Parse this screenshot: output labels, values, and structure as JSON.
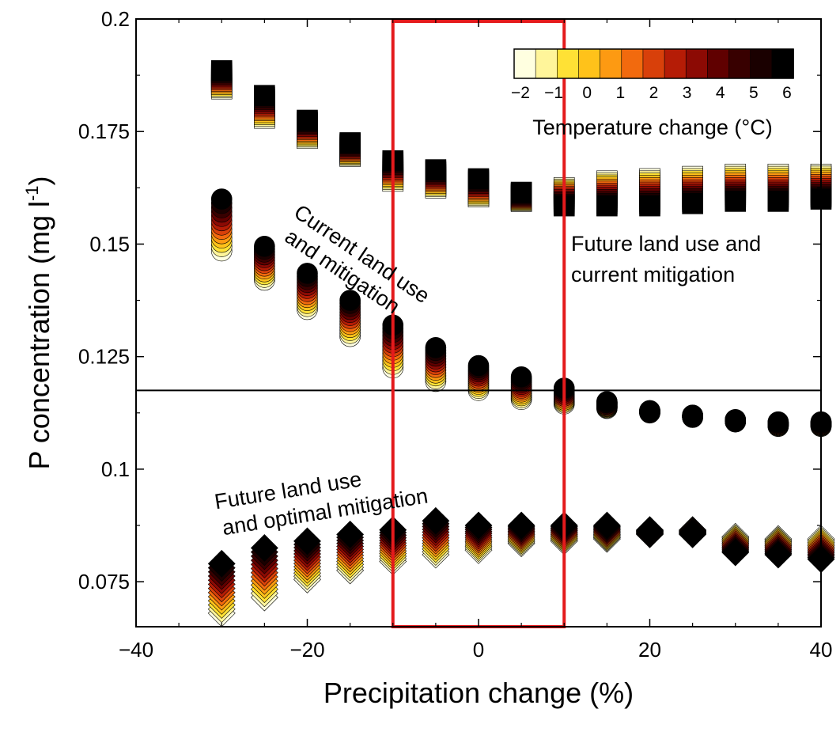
{
  "chart_data": {
    "type": "scatter",
    "xlabel": "Precipitation change (%)",
    "ylabel": "P concentration (mg l",
    "ylabel_sup": "-1",
    "ylabel_tail": ")",
    "xlim": [
      -40,
      40
    ],
    "ylim": [
      0.065,
      0.2
    ],
    "xticks": [
      -40,
      -20,
      0,
      20,
      40
    ],
    "xtick_labels": [
      "−40",
      "−20",
      "0",
      "20",
      "40"
    ],
    "yticks": [
      0.075,
      0.1,
      0.125,
      0.15,
      0.175,
      0.2
    ],
    "ytick_labels": [
      "0.075",
      "0.1",
      "0.125",
      "0.15",
      "0.175",
      "0.2"
    ],
    "x": [
      -30,
      -25,
      -20,
      -15,
      -10,
      -5,
      0,
      5,
      10,
      15,
      20,
      25,
      30,
      35,
      40
    ],
    "reference_line": 0.1175,
    "highlight_box": {
      "x": [
        -10,
        10
      ],
      "color": "#e41a1c"
    },
    "colorbar": {
      "title": "Temperature change (°C)",
      "range": [
        -2,
        6
      ],
      "ticks": [
        "−2",
        "−1",
        "0",
        "1",
        "2",
        "3",
        "4",
        "5",
        "6"
      ],
      "colors": [
        "#ffffe0",
        "#fff59a",
        "#ffe135",
        "#ffc21a",
        "#fd9a12",
        "#f26a0e",
        "#d8400a",
        "#b51c06",
        "#8c0a04",
        "#600000",
        "#380000",
        "#1a0000",
        "#000000"
      ]
    },
    "annotations": [
      {
        "lines": [
          "Current land use",
          "and mitigation"
        ]
      },
      {
        "lines": [
          "Future land use and",
          "current mitigation"
        ]
      },
      {
        "lines": [
          "Future land use",
          "and optimal mitigation"
        ]
      }
    ],
    "series": [
      {
        "marker": "square",
        "min": [
          0.1845,
          0.178,
          0.1735,
          0.1695,
          0.164,
          0.1625,
          0.1605,
          0.1595,
          0.1585,
          0.1585,
          0.1585,
          0.159,
          0.1595,
          0.1595,
          0.16
        ],
        "max": [
          0.1885,
          0.183,
          0.1775,
          0.1725,
          0.1685,
          0.1665,
          0.1645,
          0.1615,
          0.1625,
          0.164,
          0.1645,
          0.165,
          0.1655,
          0.1655,
          0.1655
        ],
        "cool_at_max": [
          false,
          false,
          false,
          false,
          false,
          false,
          false,
          false,
          true,
          true,
          true,
          true,
          true,
          true,
          true
        ]
      },
      {
        "marker": "circle",
        "min": [
          0.1485,
          0.142,
          0.1355,
          0.1295,
          0.1225,
          0.1195,
          0.1175,
          0.1155,
          0.1145,
          0.1135,
          0.1125,
          0.1115,
          0.1105,
          0.1095,
          0.1095
        ],
        "max": [
          0.16,
          0.1495,
          0.1435,
          0.1375,
          0.132,
          0.127,
          0.123,
          0.1205,
          0.118,
          0.115,
          0.113,
          0.112,
          0.111,
          0.1105,
          0.1105
        ],
        "cool_at_max": [
          false,
          false,
          false,
          false,
          false,
          false,
          false,
          false,
          false,
          false,
          false,
          false,
          false,
          false,
          false
        ]
      },
      {
        "marker": "diamond",
        "min": [
          0.068,
          0.0715,
          0.0755,
          0.0775,
          0.0795,
          0.081,
          0.082,
          0.0835,
          0.084,
          0.0845,
          0.0855,
          0.0855,
          0.0815,
          0.081,
          0.08
        ],
        "max": [
          0.079,
          0.0825,
          0.084,
          0.0855,
          0.0865,
          0.0885,
          0.0875,
          0.0875,
          0.0875,
          0.0875,
          0.0865,
          0.0865,
          0.085,
          0.0845,
          0.0845
        ],
        "cool_at_max": [
          false,
          false,
          false,
          false,
          false,
          false,
          false,
          false,
          false,
          false,
          false,
          true,
          true,
          true,
          true
        ]
      }
    ]
  }
}
